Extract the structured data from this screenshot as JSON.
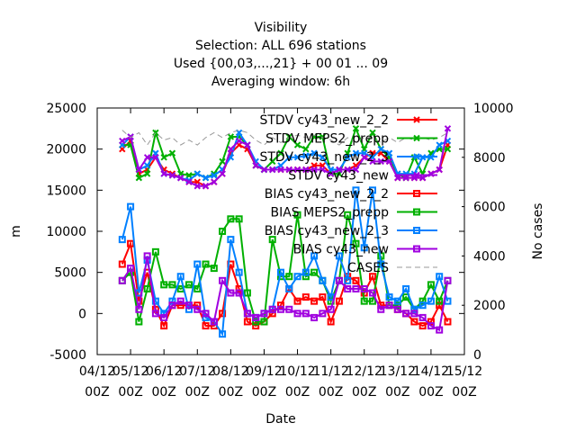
{
  "chart_data": {
    "type": "line",
    "title": [
      "Visibility",
      "Selection: ALL    696 stations",
      "Used {00,03,...,21} + 00 01 ... 09",
      "Averaging window:  6h"
    ],
    "xlabel": "Date",
    "ylabel": "m",
    "y2label": "No cases",
    "ylim": [
      -5000,
      25000
    ],
    "y2lim": [
      0,
      10000
    ],
    "yticks": [
      "-5000",
      "0",
      "5000",
      "10000",
      "15000",
      "20000",
      "25000"
    ],
    "y2ticks": [
      "0",
      "2000",
      "4000",
      "6000",
      "8000",
      "10000"
    ],
    "xlim": [
      0,
      11
    ],
    "xticks": [
      {
        "date": "04/12",
        "hour": "00Z"
      },
      {
        "date": "05/12",
        "hour": "00Z"
      },
      {
        "date": "06/12",
        "hour": "00Z"
      },
      {
        "date": "07/12",
        "hour": "00Z"
      },
      {
        "date": "08/12",
        "hour": "00Z"
      },
      {
        "date": "09/12",
        "hour": "00Z"
      },
      {
        "date": "10/12",
        "hour": "00Z"
      },
      {
        "date": "11/12",
        "hour": "00Z"
      },
      {
        "date": "12/12",
        "hour": "00Z"
      },
      {
        "date": "13/12",
        "hour": "00Z"
      },
      {
        "date": "14/12",
        "hour": "00Z"
      },
      {
        "date": "15/12",
        "hour": "00Z"
      }
    ],
    "legend_position": "top-right",
    "x": [
      0.75,
      1.0,
      1.25,
      1.5,
      1.75,
      2.0,
      2.25,
      2.5,
      2.75,
      3.0,
      3.25,
      3.5,
      3.75,
      4.0,
      4.25,
      4.5,
      4.75,
      5.0,
      5.25,
      5.5,
      5.75,
      6.0,
      6.25,
      6.5,
      6.75,
      7.0,
      7.25,
      7.5,
      7.75,
      8.0,
      8.25,
      8.5,
      8.75,
      9.0,
      9.25,
      9.5,
      9.75,
      10.0,
      10.25,
      10.5
    ],
    "series": [
      {
        "name": "STDV cy43_new_2_2",
        "color": "#ff0000",
        "marker": "x",
        "values": [
          20000,
          21000,
          17000,
          17500,
          19000,
          17500,
          17000,
          16500,
          16000,
          16000,
          15500,
          16000,
          17000,
          19500,
          20500,
          20000,
          18000,
          17500,
          17500,
          17500,
          17500,
          17500,
          17500,
          18000,
          18000,
          17000,
          17500,
          17500,
          18000,
          19000,
          19500,
          19500,
          18500,
          16500,
          16500,
          16500,
          16500,
          17000,
          17500,
          20500
        ]
      },
      {
        "name": "STDV MEPS2_prepp",
        "color": "#00b000",
        "marker": "x",
        "values": [
          20500,
          20500,
          16500,
          17000,
          22000,
          19000,
          19500,
          17000,
          16800,
          17000,
          16500,
          17000,
          18500,
          21500,
          21500,
          20500,
          18000,
          17500,
          18500,
          19500,
          21500,
          20500,
          20000,
          21500,
          21500,
          17000,
          17000,
          19500,
          22500,
          20000,
          22000,
          20000,
          19000,
          17000,
          16500,
          19000,
          17000,
          19500,
          20000,
          20000
        ]
      },
      {
        "name": "STDV cy43_new_2_3",
        "color": "#0080ff",
        "marker": "x",
        "values": [
          20500,
          21500,
          17500,
          18000,
          19500,
          17000,
          16800,
          16500,
          16200,
          17000,
          16500,
          16800,
          17500,
          19000,
          22000,
          20500,
          18500,
          17500,
          17500,
          18000,
          19000,
          19000,
          19200,
          19500,
          19000,
          17500,
          17500,
          19000,
          19500,
          19500,
          19000,
          20000,
          19500,
          17000,
          17000,
          17000,
          19000,
          19000,
          20500,
          21000
        ]
      },
      {
        "name": "STDV cy43_new",
        "color": "#a000e0",
        "marker": "x",
        "values": [
          21000,
          21500,
          17500,
          19000,
          19000,
          17000,
          16800,
          16500,
          16000,
          15500,
          15500,
          16000,
          17000,
          20000,
          21000,
          20500,
          18000,
          17500,
          17500,
          17500,
          17500,
          17500,
          17500,
          17500,
          17500,
          17000,
          17500,
          17500,
          17500,
          19000,
          18500,
          18500,
          18500,
          16500,
          16500,
          16500,
          16500,
          17000,
          17500,
          22500
        ]
      },
      {
        "name": "BIAS cy43_new_2_2",
        "color": "#ff0000",
        "marker": "square",
        "values": [
          6000,
          8500,
          1500,
          5000,
          500,
          -1500,
          1000,
          1000,
          1000,
          1000,
          -1500,
          -1500,
          0,
          6000,
          3000,
          -1000,
          -1500,
          -1000,
          0,
          1000,
          3000,
          1500,
          2000,
          1500,
          2000,
          -1000,
          1500,
          4500,
          4000,
          2500,
          4500,
          1000,
          1000,
          500,
          0,
          -1000,
          -1500,
          -1000,
          1000,
          -1000
        ]
      },
      {
        "name": "BIAS MEPS2_prepp",
        "color": "#00b000",
        "marker": "square",
        "values": [
          4000,
          5000,
          -1000,
          3000,
          7500,
          3500,
          3500,
          3000,
          3500,
          3000,
          6000,
          5500,
          10000,
          11500,
          11500,
          2500,
          -1000,
          -1000,
          9000,
          4500,
          4500,
          12000,
          4500,
          5000,
          4000,
          1500,
          4000,
          12000,
          8500,
          1500,
          1500,
          7000,
          1000,
          1000,
          2000,
          500,
          1500,
          3500,
          1500,
          4000
        ]
      },
      {
        "name": "BIAS cy43_new_2_3",
        "color": "#0080ff",
        "marker": "square",
        "values": [
          9000,
          13000,
          2500,
          6500,
          1500,
          0,
          1500,
          4500,
          500,
          6000,
          -500,
          -1000,
          -2500,
          9000,
          5000,
          0,
          -500,
          0,
          500,
          5000,
          3000,
          4500,
          5000,
          7000,
          4000,
          2000,
          7000,
          4000,
          15000,
          8000,
          15000,
          6000,
          2000,
          1500,
          3000,
          500,
          1000,
          1500,
          4500,
          1500
        ]
      },
      {
        "name": "BIAS cy43_new",
        "color": "#a000e0",
        "marker": "square",
        "values": [
          4000,
          5500,
          500,
          7000,
          0,
          -500,
          1000,
          1500,
          1000,
          500,
          0,
          -1000,
          4000,
          2500,
          2500,
          0,
          -500,
          0,
          500,
          500,
          500,
          0,
          0,
          -500,
          0,
          500,
          4000,
          3000,
          3000,
          3000,
          2500,
          500,
          1000,
          500,
          0,
          0,
          -500,
          -1500,
          -2000,
          4000
        ]
      },
      {
        "name": "CASES",
        "color": "#999999",
        "marker": "none",
        "axis": "y2",
        "dash": true,
        "values": [
          9100,
          8800,
          9000,
          8500,
          9000,
          8700,
          8800,
          8500,
          8700,
          8500,
          8800,
          9000,
          8800,
          9000,
          9100,
          9000,
          8700,
          8500,
          8800,
          8600,
          8800,
          8900,
          8800,
          8900,
          8800,
          8700,
          8500,
          8800,
          8600,
          8800,
          8800,
          8600,
          8800,
          8600,
          8800,
          8700,
          8800,
          8700,
          8800,
          9000
        ]
      }
    ]
  }
}
